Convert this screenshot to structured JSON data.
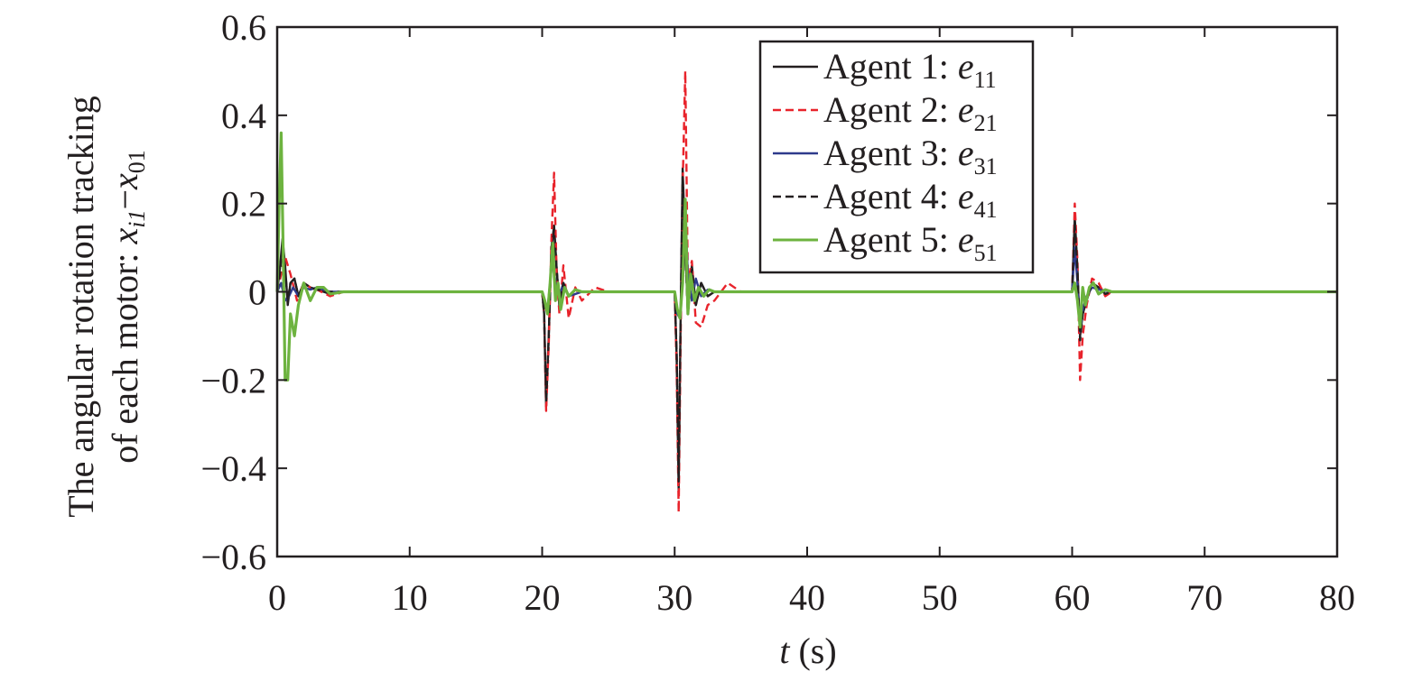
{
  "chart_data": {
    "type": "line",
    "title": "",
    "xlabel": "t (s)",
    "xlabel_var": "t",
    "xlabel_unit": "(s)",
    "ylabel_line1": "The angular rotation tracking",
    "ylabel_line2_prefix": "of each motor: ",
    "ylabel_var1": "x",
    "ylabel_sub1": "i1",
    "ylabel_minus": "−",
    "ylabel_var2": "x",
    "ylabel_sub2": "01",
    "xlim": [
      0,
      80
    ],
    "ylim": [
      -0.6,
      0.6
    ],
    "xticks": [
      0,
      10,
      20,
      30,
      40,
      50,
      60,
      70,
      80
    ],
    "xtick_labels": [
      "0",
      "10",
      "20",
      "30",
      "40",
      "50",
      "60",
      "70",
      "80"
    ],
    "yticks": [
      0.6,
      0.4,
      0.2,
      0,
      -0.2,
      -0.4,
      -0.6
    ],
    "ytick_labels": [
      "0.6",
      "0.4",
      "0.2",
      "0",
      "−0.2",
      "−0.4",
      "−0.6"
    ],
    "grid": false,
    "legend_position": "top-right",
    "series": [
      {
        "name": "Agent 1: e11",
        "legend_prefix": "Agent 1: ",
        "legend_var": "e",
        "legend_sub": "11",
        "color": "#231f20",
        "dash": "solid",
        "x": [
          0,
          0.2,
          0.4,
          0.6,
          0.8,
          1.0,
          1.3,
          1.6,
          2.0,
          2.5,
          3.0,
          4.0,
          5.0,
          6.0,
          20.0,
          20.15,
          20.3,
          20.5,
          20.7,
          20.9,
          21.1,
          21.3,
          21.6,
          22.0,
          22.5,
          23.0,
          24.0,
          25.0,
          30.0,
          30.15,
          30.3,
          30.45,
          30.6,
          30.8,
          31.0,
          31.3,
          31.6,
          32.0,
          32.5,
          33.0,
          34.0,
          35.0,
          60.0,
          60.2,
          60.4,
          60.6,
          60.8,
          61.1,
          61.5,
          62.0,
          62.5,
          63.0,
          64.0,
          65.0,
          80
        ],
        "y": [
          0,
          0.05,
          0.12,
          0.06,
          -0.03,
          0.02,
          0.03,
          -0.01,
          0.02,
          0.01,
          0.005,
          -0.005,
          0,
          0,
          0,
          -0.05,
          -0.26,
          -0.1,
          0.1,
          0.15,
          0.05,
          -0.03,
          0.02,
          -0.01,
          0.005,
          0,
          0,
          0,
          0,
          -0.15,
          -0.45,
          -0.05,
          0.28,
          0.1,
          -0.05,
          0.06,
          -0.03,
          0.02,
          -0.01,
          0,
          0,
          0,
          0,
          0.17,
          0.05,
          -0.1,
          -0.05,
          -0.02,
          0.02,
          0.01,
          -0.005,
          0,
          0,
          0,
          0
        ]
      },
      {
        "name": "Agent 2: e21",
        "legend_prefix": "Agent 2: ",
        "legend_var": "e",
        "legend_sub": "21",
        "color": "#e8232b",
        "dash": "dashed",
        "x": [
          0,
          0.3,
          0.6,
          1.0,
          1.5,
          2.0,
          2.5,
          3.0,
          4.0,
          5.0,
          20.0,
          20.15,
          20.3,
          20.5,
          20.7,
          20.9,
          21.1,
          21.3,
          21.6,
          22.0,
          22.5,
          23.0,
          24.0,
          25.0,
          30.0,
          30.15,
          30.3,
          30.45,
          30.6,
          30.8,
          31.0,
          31.3,
          31.6,
          32.0,
          32.5,
          33.0,
          34.0,
          35.0,
          60.0,
          60.2,
          60.4,
          60.6,
          60.8,
          61.1,
          61.5,
          62.0,
          62.5,
          63.0,
          64.0,
          65.0,
          80
        ],
        "y": [
          0,
          0.04,
          0.08,
          0.04,
          -0.02,
          0.02,
          0.01,
          0.005,
          -0.01,
          0,
          0,
          -0.05,
          -0.27,
          -0.12,
          0.12,
          0.27,
          0.04,
          -0.05,
          0.06,
          -0.06,
          0.01,
          -0.02,
          0.01,
          0,
          0,
          -0.18,
          -0.5,
          -0.1,
          0.24,
          0.5,
          0.02,
          0.07,
          -0.07,
          -0.08,
          -0.03,
          -0.02,
          0.02,
          0,
          0,
          0.2,
          0.07,
          -0.2,
          -0.1,
          -0.03,
          0.03,
          0.02,
          -0.01,
          0,
          0,
          0,
          0
        ]
      },
      {
        "name": "Agent 3: e31",
        "legend_prefix": "Agent 3: ",
        "legend_var": "e",
        "legend_sub": "31",
        "color": "#2e3a8c",
        "dash": "solid",
        "x": [
          0,
          0.3,
          0.6,
          0.9,
          1.2,
          1.6,
          2.0,
          2.5,
          3.0,
          4.0,
          5.0,
          20.0,
          20.2,
          20.4,
          20.6,
          20.8,
          21.0,
          21.3,
          21.6,
          22.0,
          23.0,
          25.0,
          30.0,
          30.2,
          30.4,
          30.6,
          30.8,
          31.0,
          31.3,
          31.6,
          32.0,
          32.5,
          33.0,
          35.0,
          60.0,
          60.2,
          60.4,
          60.6,
          60.8,
          61.1,
          61.5,
          62.0,
          63.0,
          65.0,
          80
        ],
        "y": [
          0,
          0.02,
          -0.02,
          -0.01,
          0.01,
          -0.01,
          0.01,
          0.005,
          0.01,
          0,
          0,
          0,
          -0.02,
          -0.04,
          0.02,
          0.08,
          0.02,
          -0.01,
          0.02,
          -0.01,
          0,
          0,
          0,
          -0.05,
          -0.06,
          0.03,
          0.18,
          0.04,
          -0.02,
          0.03,
          -0.01,
          0.005,
          0,
          0,
          0,
          0.1,
          0.02,
          -0.09,
          -0.04,
          -0.01,
          0.01,
          0.005,
          0,
          0,
          0
        ]
      },
      {
        "name": "Agent 4: e41",
        "legend_prefix": "Agent 4: ",
        "legend_var": "e",
        "legend_sub": "41",
        "color": "#231f20",
        "dash": "dashed",
        "x": [
          0,
          0.2,
          0.4,
          0.6,
          0.8,
          1.0,
          1.3,
          1.6,
          2.0,
          2.5,
          3.0,
          4.0,
          5.0,
          20.0,
          20.15,
          20.3,
          20.5,
          20.7,
          20.9,
          21.1,
          21.3,
          21.6,
          22.0,
          22.5,
          23.0,
          25.0,
          30.0,
          30.15,
          30.3,
          30.45,
          30.6,
          30.8,
          31.0,
          31.3,
          31.6,
          32.0,
          32.5,
          33.0,
          35.0,
          60.0,
          60.2,
          60.4,
          60.6,
          60.8,
          61.1,
          61.5,
          62.0,
          62.5,
          63.0,
          65.0,
          80
        ],
        "y": [
          0,
          0.04,
          0.1,
          0.05,
          -0.02,
          0.02,
          0.03,
          -0.01,
          0.02,
          0.01,
          0.005,
          0,
          0,
          0,
          -0.05,
          -0.25,
          -0.1,
          0.1,
          0.14,
          0.05,
          -0.03,
          0.02,
          -0.01,
          0.005,
          0,
          0,
          0,
          -0.14,
          -0.43,
          -0.05,
          0.26,
          0.09,
          -0.05,
          0.05,
          -0.03,
          0.02,
          -0.01,
          0,
          0,
          0,
          0.16,
          0.05,
          -0.11,
          -0.05,
          -0.02,
          0.02,
          0.01,
          -0.005,
          0,
          0,
          0
        ]
      },
      {
        "name": "Agent 5: e51",
        "legend_prefix": "Agent 5: ",
        "legend_var": "e",
        "legend_sub": "51",
        "color": "#6db33f",
        "dash": "solid",
        "x": [
          0,
          0.15,
          0.3,
          0.45,
          0.6,
          0.8,
          1.0,
          1.3,
          1.6,
          2.0,
          2.5,
          3.0,
          3.5,
          4.0,
          5.0,
          6.0,
          20.0,
          20.2,
          20.4,
          20.6,
          20.8,
          21.0,
          21.2,
          21.4,
          21.7,
          22.0,
          22.5,
          23.0,
          25.0,
          30.0,
          30.2,
          30.4,
          30.6,
          30.8,
          31.0,
          31.2,
          31.5,
          31.8,
          32.2,
          32.6,
          33.0,
          35.0,
          60.0,
          60.2,
          60.4,
          60.6,
          60.8,
          61.0,
          61.3,
          61.6,
          62.0,
          62.5,
          63.0,
          65.0,
          80
        ],
        "y": [
          0,
          0.2,
          0.36,
          0.1,
          -0.2,
          -0.2,
          -0.05,
          -0.1,
          -0.03,
          0.02,
          -0.02,
          0.01,
          0.01,
          -0.005,
          0,
          0,
          0,
          -0.02,
          -0.05,
          0.02,
          0.11,
          -0.02,
          0.02,
          -0.04,
          0.01,
          -0.01,
          0.005,
          0,
          0,
          0,
          -0.04,
          -0.06,
          0.02,
          0.21,
          -0.05,
          0.04,
          -0.02,
          0.01,
          -0.01,
          0.005,
          0,
          0,
          0,
          0.02,
          -0.02,
          -0.08,
          0.01,
          -0.03,
          0.01,
          0.02,
          -0.005,
          0.005,
          0,
          0,
          0
        ]
      }
    ]
  }
}
